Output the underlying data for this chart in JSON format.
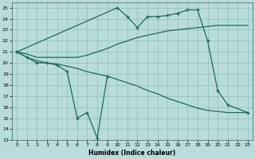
{
  "xlabel": "Humidex (Indice chaleur)",
  "bg_color": "#b8dcdc",
  "grid_color": "#90bcbc",
  "line_color": "#206858",
  "xlim": [
    -0.5,
    23.5
  ],
  "ylim": [
    13,
    25.5
  ],
  "yticks": [
    13,
    14,
    15,
    16,
    17,
    18,
    19,
    20,
    21,
    22,
    23,
    24,
    25
  ],
  "xticks": [
    0,
    1,
    2,
    3,
    4,
    5,
    6,
    7,
    8,
    9,
    10,
    11,
    12,
    13,
    14,
    15,
    16,
    17,
    18,
    19,
    20,
    21,
    22,
    23
  ],
  "line1_x": [
    0,
    1,
    2,
    3,
    4,
    5,
    6,
    7,
    8,
    9
  ],
  "line1_y": [
    21.0,
    20.5,
    20.0,
    20.0,
    19.8,
    19.2,
    15.0,
    15.5,
    13.2,
    18.8
  ],
  "line2_x": [
    0,
    10,
    11,
    12,
    13,
    14,
    15,
    16,
    17,
    18,
    19,
    20,
    21,
    23
  ],
  "line2_y": [
    21.0,
    25.0,
    24.2,
    23.2,
    24.2,
    24.2,
    24.3,
    24.5,
    24.8,
    24.8,
    22.0,
    17.5,
    16.2,
    15.5
  ],
  "line3_x": [
    0,
    1,
    2,
    3,
    4,
    5,
    6,
    7,
    8,
    9,
    10,
    11,
    12,
    13,
    14,
    15,
    16,
    17,
    18,
    19,
    20,
    21,
    22,
    23
  ],
  "line3_y": [
    21.0,
    20.8,
    20.5,
    20.5,
    20.5,
    20.5,
    20.5,
    20.7,
    21.0,
    21.3,
    21.7,
    22.0,
    22.3,
    22.5,
    22.7,
    22.9,
    23.0,
    23.1,
    23.2,
    23.3,
    23.4,
    23.4,
    23.4,
    23.4
  ],
  "line4_x": [
    0,
    1,
    2,
    3,
    4,
    5,
    6,
    7,
    8,
    9,
    10,
    11,
    12,
    13,
    14,
    15,
    16,
    17,
    18,
    19,
    20,
    21,
    22,
    23
  ],
  "line4_y": [
    21.0,
    20.5,
    20.2,
    20.0,
    19.9,
    19.7,
    19.5,
    19.2,
    19.0,
    18.8,
    18.5,
    18.2,
    17.9,
    17.5,
    17.2,
    16.8,
    16.5,
    16.2,
    15.9,
    15.7,
    15.6,
    15.5,
    15.5,
    15.5
  ]
}
